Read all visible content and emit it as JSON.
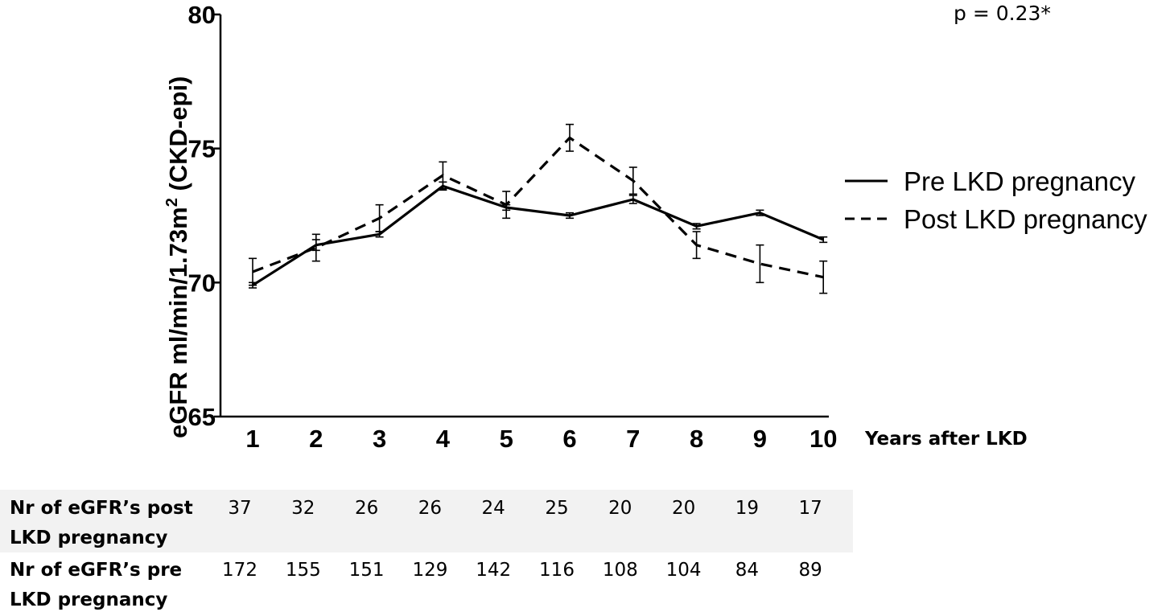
{
  "chart_data": {
    "type": "line",
    "title": "",
    "ylabel": "eGFR ml/min/1.73m",
    "ylabel_sup": "2",
    "ylabel_suffix": " (CKD-epi)",
    "xlabel": "Years after LKD",
    "ylim": [
      65,
      80
    ],
    "yticks": [
      "65",
      "70",
      "75",
      "80"
    ],
    "ytick_values": [
      65,
      70,
      75,
      80
    ],
    "categories": [
      "1",
      "2",
      "3",
      "4",
      "5",
      "6",
      "7",
      "8",
      "9",
      "10"
    ],
    "annotation": "p = 0.23*",
    "grid": false,
    "legend_position": "right",
    "series": [
      {
        "name": "Pre LKD pregnancy",
        "style": "solid",
        "values": [
          69.9,
          71.4,
          71.8,
          73.6,
          72.8,
          72.5,
          73.1,
          72.1,
          72.6,
          71.6
        ],
        "error": [
          0.1,
          0.2,
          0.1,
          0.15,
          0.1,
          0.1,
          0.15,
          0.1,
          0.1,
          0.1
        ]
      },
      {
        "name": "Post LKD pregnancy",
        "style": "dashed",
        "values": [
          70.4,
          71.3,
          72.4,
          74.0,
          72.9,
          75.4,
          73.8,
          71.4,
          70.7,
          70.2
        ],
        "error": [
          0.5,
          0.5,
          0.5,
          0.5,
          0.5,
          0.5,
          0.5,
          0.5,
          0.7,
          0.6
        ]
      }
    ],
    "table": {
      "rows": [
        {
          "label_line1": "Nr of eGFR’s post",
          "label_line2": "LKD pregnancy",
          "values": [
            "37",
            "32",
            "26",
            "26",
            "24",
            "25",
            "20",
            "20",
            "19",
            "17"
          ],
          "shaded": true
        },
        {
          "label_line1": "Nr of eGFR’s pre",
          "label_line2": "LKD pregnancy",
          "values": [
            "172",
            "155",
            "151",
            "129",
            "142",
            "116",
            "108",
            "104",
            "84",
            "89"
          ],
          "shaded": false
        }
      ]
    }
  },
  "colors": {
    "line": "#000000",
    "table_shade": "#f2f2f2",
    "background": "#ffffff"
  }
}
